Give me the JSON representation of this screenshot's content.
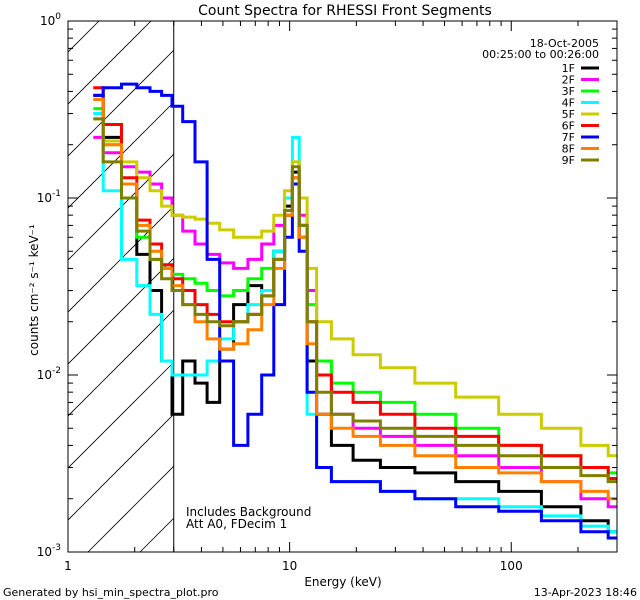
{
  "chart_data": {
    "type": "line",
    "title": "Count Spectra for RHESSI Front Segments",
    "xlabel": "Energy (keV)",
    "ylabel": "counts cm⁻² s⁻¹ keV⁻¹",
    "xscale": "log",
    "yscale": "log",
    "xlim": [
      1.0,
      300.0
    ],
    "ylim": [
      0.001,
      1.0
    ],
    "x_ticks": [
      {
        "value": 1,
        "label": "1"
      },
      {
        "value": 10,
        "label": "10"
      },
      {
        "value": 100,
        "label": "100"
      }
    ],
    "y_ticks": [
      {
        "value": 1,
        "base": "10",
        "exp": "0"
      },
      {
        "value": 0.1,
        "base": "10",
        "exp": "-1"
      },
      {
        "value": 0.01,
        "base": "10",
        "exp": "-2"
      },
      {
        "value": 0.001,
        "base": "10",
        "exp": "-3"
      }
    ],
    "attenuator_cutoff_keV": 3.0,
    "annotations": {
      "date": "18-Oct-2005",
      "time_range": "00:25:00 to 00:26:00",
      "background_note": "Includes Background",
      "att_note": "Att A0, FDecim 1"
    },
    "series": [
      {
        "name": "1F",
        "color": "#000000",
        "points": [
          [
            1.3,
            0.38
          ],
          [
            1.6,
            0.22
          ],
          [
            1.9,
            0.12
          ],
          [
            2.2,
            0.048
          ],
          [
            2.5,
            0.03
          ],
          [
            2.8,
            0.012
          ],
          [
            3.1,
            0.006
          ],
          [
            3.5,
            0.012
          ],
          [
            4.0,
            0.009
          ],
          [
            4.5,
            0.007
          ],
          [
            5.2,
            0.014
          ],
          [
            6.0,
            0.025
          ],
          [
            7.0,
            0.032
          ],
          [
            8.0,
            0.03
          ],
          [
            9.0,
            0.05
          ],
          [
            10.0,
            0.09
          ],
          [
            10.6,
            0.14
          ],
          [
            11.5,
            0.07
          ],
          [
            12.5,
            0.012
          ],
          [
            14.0,
            0.006
          ],
          [
            17.0,
            0.004
          ],
          [
            22.0,
            0.0033
          ],
          [
            30.0,
            0.003
          ],
          [
            45.0,
            0.0028
          ],
          [
            70.0,
            0.0025
          ],
          [
            110.0,
            0.0022
          ],
          [
            170.0,
            0.0018
          ],
          [
            250.0,
            0.0015
          ],
          [
            300.0,
            0.0013
          ]
        ]
      },
      {
        "name": "2F",
        "color": "#ff00ff",
        "points": [
          [
            1.3,
            0.22
          ],
          [
            1.6,
            0.18
          ],
          [
            1.9,
            0.15
          ],
          [
            2.2,
            0.14
          ],
          [
            2.5,
            0.12
          ],
          [
            2.8,
            0.1
          ],
          [
            3.1,
            0.08
          ],
          [
            3.5,
            0.065
          ],
          [
            4.0,
            0.055
          ],
          [
            4.5,
            0.048
          ],
          [
            5.2,
            0.043
          ],
          [
            6.0,
            0.04
          ],
          [
            7.0,
            0.045
          ],
          [
            8.0,
            0.055
          ],
          [
            9.0,
            0.07
          ],
          [
            10.0,
            0.1
          ],
          [
            10.6,
            0.13
          ],
          [
            11.5,
            0.08
          ],
          [
            12.5,
            0.03
          ],
          [
            14.0,
            0.01
          ],
          [
            17.0,
            0.006
          ],
          [
            22.0,
            0.005
          ],
          [
            30.0,
            0.0045
          ],
          [
            45.0,
            0.004
          ],
          [
            70.0,
            0.0035
          ],
          [
            110.0,
            0.003
          ],
          [
            170.0,
            0.0025
          ],
          [
            250.0,
            0.002
          ],
          [
            300.0,
            0.0018
          ]
        ]
      },
      {
        "name": "3F",
        "color": "#00ff00",
        "points": [
          [
            1.3,
            0.32
          ],
          [
            1.6,
            0.2
          ],
          [
            1.9,
            0.1
          ],
          [
            2.2,
            0.06
          ],
          [
            2.5,
            0.045
          ],
          [
            2.8,
            0.04
          ],
          [
            3.1,
            0.037
          ],
          [
            3.5,
            0.035
          ],
          [
            4.0,
            0.033
          ],
          [
            4.5,
            0.03
          ],
          [
            5.2,
            0.028
          ],
          [
            6.0,
            0.03
          ],
          [
            7.0,
            0.035
          ],
          [
            8.0,
            0.04
          ],
          [
            9.0,
            0.05
          ],
          [
            10.0,
            0.08
          ],
          [
            10.6,
            0.12
          ],
          [
            11.5,
            0.07
          ],
          [
            12.5,
            0.025
          ],
          [
            14.0,
            0.012
          ],
          [
            17.0,
            0.009
          ],
          [
            22.0,
            0.008
          ],
          [
            30.0,
            0.007
          ],
          [
            45.0,
            0.006
          ],
          [
            70.0,
            0.005
          ],
          [
            110.0,
            0.004
          ],
          [
            170.0,
            0.0035
          ],
          [
            250.0,
            0.003
          ],
          [
            300.0,
            0.0028
          ]
        ]
      },
      {
        "name": "4F",
        "color": "#00ffff",
        "points": [
          [
            1.3,
            0.3
          ],
          [
            1.6,
            0.11
          ],
          [
            1.9,
            0.045
          ],
          [
            2.2,
            0.032
          ],
          [
            2.5,
            0.022
          ],
          [
            2.8,
            0.012
          ],
          [
            3.1,
            0.01
          ],
          [
            3.5,
            0.01
          ],
          [
            4.0,
            0.01
          ],
          [
            4.5,
            0.012
          ],
          [
            5.2,
            0.016
          ],
          [
            6.0,
            0.02
          ],
          [
            7.0,
            0.025
          ],
          [
            8.0,
            0.03
          ],
          [
            9.0,
            0.05
          ],
          [
            10.0,
            0.1
          ],
          [
            10.6,
            0.22
          ],
          [
            11.5,
            0.06
          ],
          [
            12.5,
            0.006
          ],
          [
            14.0,
            0.003
          ],
          [
            17.0,
            0.0025
          ],
          [
            22.0,
            0.0025
          ],
          [
            30.0,
            0.0022
          ],
          [
            45.0,
            0.002
          ],
          [
            70.0,
            0.002
          ],
          [
            110.0,
            0.0018
          ],
          [
            170.0,
            0.0016
          ],
          [
            250.0,
            0.0014
          ],
          [
            300.0,
            0.0013
          ]
        ]
      },
      {
        "name": "5F",
        "color": "#cccc00",
        "points": [
          [
            1.3,
            0.28
          ],
          [
            1.6,
            0.21
          ],
          [
            1.9,
            0.16
          ],
          [
            2.2,
            0.13
          ],
          [
            2.5,
            0.11
          ],
          [
            2.8,
            0.09
          ],
          [
            3.1,
            0.08
          ],
          [
            3.5,
            0.078
          ],
          [
            4.0,
            0.076
          ],
          [
            4.5,
            0.072
          ],
          [
            5.2,
            0.066
          ],
          [
            6.0,
            0.06
          ],
          [
            7.0,
            0.06
          ],
          [
            8.0,
            0.065
          ],
          [
            9.0,
            0.08
          ],
          [
            10.0,
            0.11
          ],
          [
            10.6,
            0.16
          ],
          [
            11.5,
            0.1
          ],
          [
            12.5,
            0.04
          ],
          [
            14.0,
            0.02
          ],
          [
            17.0,
            0.016
          ],
          [
            22.0,
            0.013
          ],
          [
            30.0,
            0.011
          ],
          [
            45.0,
            0.009
          ],
          [
            70.0,
            0.0075
          ],
          [
            110.0,
            0.006
          ],
          [
            170.0,
            0.005
          ],
          [
            250.0,
            0.004
          ],
          [
            300.0,
            0.0035
          ]
        ]
      },
      {
        "name": "6F",
        "color": "#ff0000",
        "points": [
          [
            1.3,
            0.42
          ],
          [
            1.6,
            0.26
          ],
          [
            1.9,
            0.13
          ],
          [
            2.2,
            0.075
          ],
          [
            2.5,
            0.055
          ],
          [
            2.8,
            0.042
          ],
          [
            3.1,
            0.035
          ],
          [
            3.5,
            0.03
          ],
          [
            4.0,
            0.025
          ],
          [
            4.5,
            0.022
          ],
          [
            5.2,
            0.02
          ],
          [
            6.0,
            0.02
          ],
          [
            7.0,
            0.022
          ],
          [
            8.0,
            0.028
          ],
          [
            9.0,
            0.045
          ],
          [
            10.0,
            0.08
          ],
          [
            10.6,
            0.12
          ],
          [
            11.5,
            0.06
          ],
          [
            12.5,
            0.02
          ],
          [
            14.0,
            0.01
          ],
          [
            17.0,
            0.008
          ],
          [
            22.0,
            0.007
          ],
          [
            30.0,
            0.006
          ],
          [
            45.0,
            0.005
          ],
          [
            70.0,
            0.0045
          ],
          [
            110.0,
            0.004
          ],
          [
            170.0,
            0.0035
          ],
          [
            250.0,
            0.003
          ],
          [
            300.0,
            0.0026
          ]
        ]
      },
      {
        "name": "7F",
        "color": "#0000ff",
        "points": [
          [
            1.3,
            0.38
          ],
          [
            1.6,
            0.42
          ],
          [
            1.9,
            0.44
          ],
          [
            2.2,
            0.42
          ],
          [
            2.5,
            0.4
          ],
          [
            2.8,
            0.38
          ],
          [
            3.1,
            0.33
          ],
          [
            3.5,
            0.27
          ],
          [
            4.0,
            0.16
          ],
          [
            4.5,
            0.045
          ],
          [
            5.2,
            0.012
          ],
          [
            6.0,
            0.004
          ],
          [
            7.0,
            0.006
          ],
          [
            8.0,
            0.01
          ],
          [
            9.0,
            0.025
          ],
          [
            10.0,
            0.06
          ],
          [
            10.6,
            0.12
          ],
          [
            11.5,
            0.05
          ],
          [
            12.5,
            0.008
          ],
          [
            14.0,
            0.003
          ],
          [
            17.0,
            0.0025
          ],
          [
            22.0,
            0.0025
          ],
          [
            30.0,
            0.0022
          ],
          [
            45.0,
            0.002
          ],
          [
            70.0,
            0.0018
          ],
          [
            110.0,
            0.0017
          ],
          [
            170.0,
            0.0015
          ],
          [
            250.0,
            0.0013
          ],
          [
            300.0,
            0.0012
          ]
        ]
      },
      {
        "name": "8F",
        "color": "#ff8000",
        "points": [
          [
            1.3,
            0.36
          ],
          [
            1.6,
            0.2
          ],
          [
            1.9,
            0.12
          ],
          [
            2.2,
            0.07
          ],
          [
            2.5,
            0.05
          ],
          [
            2.8,
            0.04
          ],
          [
            3.1,
            0.032
          ],
          [
            3.5,
            0.025
          ],
          [
            4.0,
            0.02
          ],
          [
            4.5,
            0.016
          ],
          [
            5.2,
            0.014
          ],
          [
            6.0,
            0.015
          ],
          [
            7.0,
            0.018
          ],
          [
            8.0,
            0.025
          ],
          [
            9.0,
            0.04
          ],
          [
            10.0,
            0.08
          ],
          [
            10.6,
            0.13
          ],
          [
            11.5,
            0.06
          ],
          [
            12.5,
            0.015
          ],
          [
            14.0,
            0.006
          ],
          [
            17.0,
            0.005
          ],
          [
            22.0,
            0.0045
          ],
          [
            30.0,
            0.004
          ],
          [
            45.0,
            0.0035
          ],
          [
            70.0,
            0.003
          ],
          [
            110.0,
            0.0028
          ],
          [
            170.0,
            0.0025
          ],
          [
            250.0,
            0.0022
          ],
          [
            300.0,
            0.002
          ]
        ]
      },
      {
        "name": "9F",
        "color": "#808000",
        "points": [
          [
            1.3,
            0.28
          ],
          [
            1.6,
            0.16
          ],
          [
            1.9,
            0.1
          ],
          [
            2.2,
            0.065
          ],
          [
            2.5,
            0.045
          ],
          [
            2.8,
            0.035
          ],
          [
            3.1,
            0.03
          ],
          [
            3.5,
            0.025
          ],
          [
            4.0,
            0.022
          ],
          [
            4.5,
            0.02
          ],
          [
            5.2,
            0.019
          ],
          [
            6.0,
            0.02
          ],
          [
            7.0,
            0.022
          ],
          [
            8.0,
            0.028
          ],
          [
            9.0,
            0.045
          ],
          [
            10.0,
            0.085
          ],
          [
            10.6,
            0.15
          ],
          [
            11.5,
            0.07
          ],
          [
            12.5,
            0.02
          ],
          [
            14.0,
            0.008
          ],
          [
            17.0,
            0.006
          ],
          [
            22.0,
            0.0055
          ],
          [
            30.0,
            0.005
          ],
          [
            45.0,
            0.0045
          ],
          [
            70.0,
            0.004
          ],
          [
            110.0,
            0.0035
          ],
          [
            170.0,
            0.003
          ],
          [
            250.0,
            0.0027
          ],
          [
            300.0,
            0.0025
          ]
        ]
      }
    ]
  },
  "footer": {
    "generated_by": "Generated by hsi_min_spectra_plot.pro",
    "timestamp": "13-Apr-2023 18:46"
  }
}
